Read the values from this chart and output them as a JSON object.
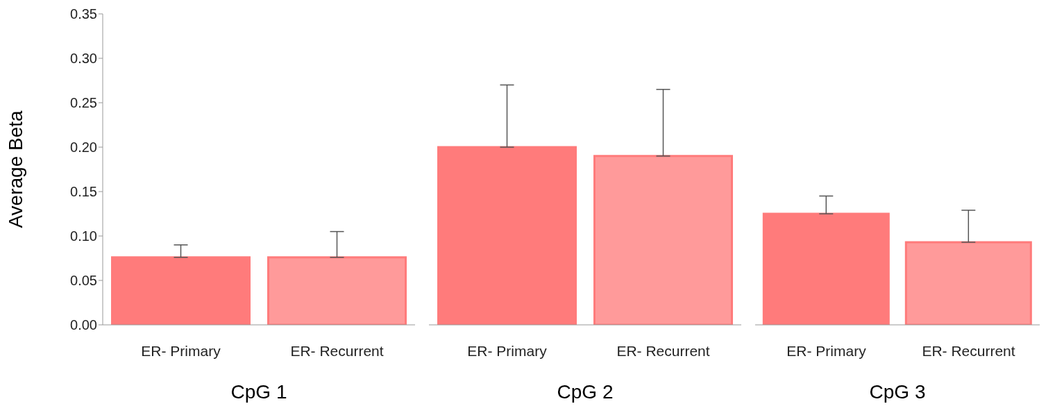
{
  "chart_data": [
    {
      "type": "bar",
      "xlabel": "CpG 1",
      "ylabel": "Average Beta",
      "categories": [
        "ER- Primary",
        "ER- Recurrent"
      ],
      "values": [
        0.076,
        0.076
      ],
      "errors": [
        [
          0.076,
          0.09
        ],
        [
          0.076,
          0.105
        ]
      ],
      "colors": [
        "#ff7b7b",
        "#ff9a9a"
      ],
      "ylim": [
        0,
        0.35
      ],
      "yticks": [
        {
          "value": 0,
          "label": "0.00"
        },
        {
          "value": 0.05,
          "label": "0.05"
        },
        {
          "value": 0.1,
          "label": "0.10"
        },
        {
          "value": 0.15,
          "label": "0.15"
        },
        {
          "value": 0.2,
          "label": "0.20"
        },
        {
          "value": 0.25,
          "label": "0.25"
        },
        {
          "value": 0.3,
          "label": "0.30"
        },
        {
          "value": 0.35,
          "label": "0.35"
        }
      ]
    },
    {
      "type": "bar",
      "xlabel": "CpG 2",
      "categories": [
        "ER- Primary",
        "ER- Recurrent"
      ],
      "values": [
        0.2,
        0.19
      ],
      "errors": [
        [
          0.2,
          0.27
        ],
        [
          0.19,
          0.265
        ]
      ],
      "colors": [
        "#ff7b7b",
        "#ff9a9a"
      ],
      "ylim": [
        0,
        0.35
      ],
      "tick_labels": "x"
    },
    {
      "type": "bar",
      "xlabel": "CpG 3",
      "categories": [
        "ER- Primary",
        "ER- Recurrent"
      ],
      "values": [
        0.125,
        0.093
      ],
      "errors": [
        [
          0.125,
          0.145
        ],
        [
          0.093,
          0.129
        ]
      ],
      "colors": [
        "#ff7b7b",
        "#ff9a9a"
      ],
      "ylim": [
        0,
        0.35
      ],
      "tick_labels": "x"
    }
  ]
}
